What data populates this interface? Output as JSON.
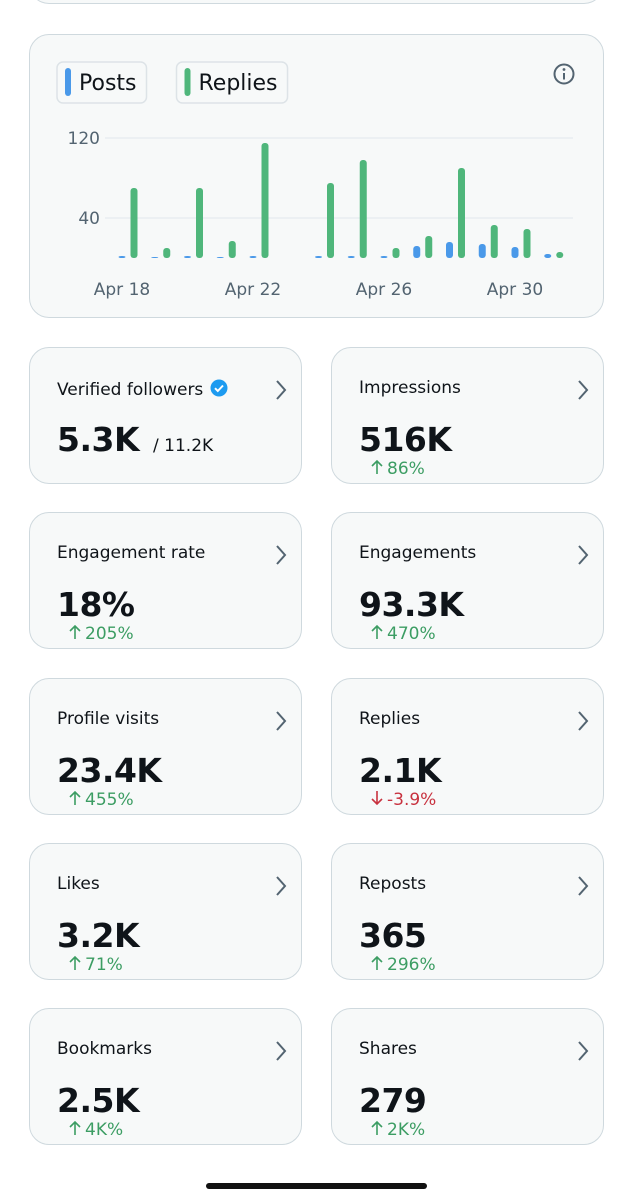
{
  "chart_data": {
    "type": "bar",
    "categories": [
      "Apr 18",
      null,
      null,
      null,
      "Apr 22",
      null,
      null,
      null,
      "Apr 26",
      null,
      null,
      null,
      "Apr 30",
      null
    ],
    "series": [
      {
        "name": "Posts",
        "color": "#4a99e9",
        "values": [
          2,
          1,
          2,
          1,
          2,
          0,
          2,
          2,
          2,
          12,
          16,
          14,
          11,
          4
        ]
      },
      {
        "name": "Replies",
        "color": "#4fb67b",
        "values": [
          70,
          10,
          70,
          17,
          115,
          0,
          75,
          98,
          10,
          22,
          90,
          33,
          29,
          6
        ]
      }
    ],
    "ylim": [
      0,
      125
    ],
    "yticks": [
      40,
      120
    ],
    "grid": true
  },
  "cards": [
    {
      "label": "Verified followers",
      "value": "5.3K",
      "total": "/ 11.2K",
      "verified": true
    },
    {
      "label": "Impressions",
      "value": "516K",
      "change": "86%",
      "direction": "up"
    },
    {
      "label": "Engagement rate",
      "value": "18%",
      "change": "205%",
      "direction": "up"
    },
    {
      "label": "Engagements",
      "value": "93.3K",
      "change": "470%",
      "direction": "up"
    },
    {
      "label": "Profile visits",
      "value": "23.4K",
      "change": "455%",
      "direction": "up"
    },
    {
      "label": "Replies",
      "value": "2.1K",
      "change": "-3.9%",
      "direction": "down"
    },
    {
      "label": "Likes",
      "value": "3.2K",
      "change": "71%",
      "direction": "up"
    },
    {
      "label": "Reposts",
      "value": "365",
      "change": "296%",
      "direction": "up"
    },
    {
      "label": "Bookmarks",
      "value": "2.5K",
      "change": "4K%",
      "direction": "up"
    },
    {
      "label": "Shares",
      "value": "279",
      "change": "2K%",
      "direction": "up"
    }
  ]
}
